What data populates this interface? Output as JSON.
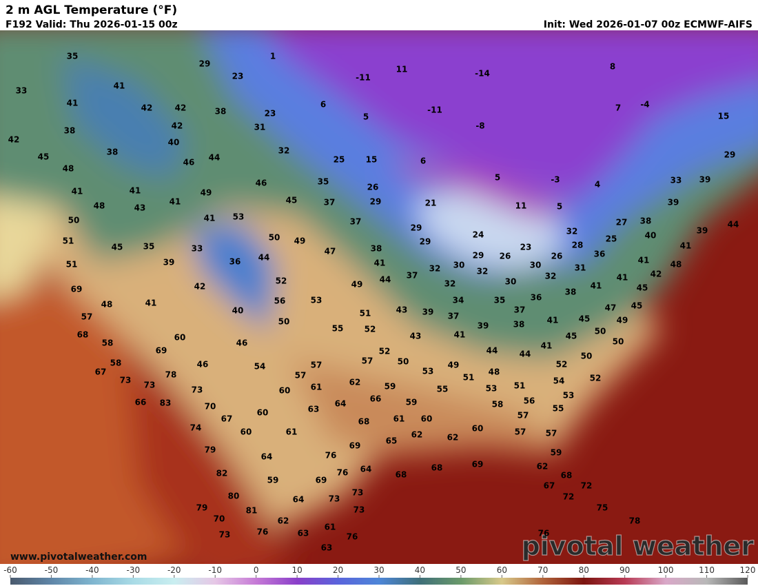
{
  "header": {
    "title": "2 m AGL Temperature (°F)",
    "valid": "F192 Valid: Thu 2026-01-15 00z",
    "init": "Init: Wed 2026-01-07 00z ECMWF-AIFS"
  },
  "map": {
    "temperature_labels": [
      35,
      29,
      1,
      11,
      -11,
      -14,
      8,
      33,
      41,
      23,
      6,
      -11,
      7,
      -4,
      41,
      42,
      42,
      38,
      23,
      5,
      15,
      38,
      42,
      31,
      -8,
      42,
      40,
      38,
      32,
      15,
      25,
      6,
      29,
      45,
      46,
      44,
      48,
      5,
      -3,
      4,
      33,
      39,
      35,
      26,
      46,
      41,
      41,
      49,
      45,
      37,
      29,
      21,
      11,
      5,
      39,
      48,
      43,
      41,
      53,
      41,
      50,
      37,
      29,
      27,
      38,
      44,
      39,
      32,
      51,
      45,
      35,
      33,
      50,
      49,
      24,
      40,
      29,
      47,
      38,
      23,
      28,
      25,
      36,
      41,
      44,
      36,
      29,
      26,
      26,
      51,
      39,
      41,
      30,
      30,
      31,
      32,
      32,
      41,
      48,
      37,
      44,
      52,
      49,
      32,
      30,
      32,
      42,
      41,
      41,
      45,
      69,
      42,
      38,
      56,
      53,
      41,
      48,
      34,
      35,
      36,
      45,
      47,
      40,
      43,
      39,
      37,
      37,
      51,
      57,
      45,
      49,
      50,
      55,
      52,
      39,
      38,
      41,
      68,
      43,
      41,
      45,
      50,
      60,
      46,
      58,
      41,
      50,
      69,
      52,
      44,
      44,
      50,
      58,
      57,
      50,
      57,
      46,
      54,
      53,
      49,
      52,
      67,
      48,
      78,
      73,
      73,
      57,
      62,
      51,
      51,
      54,
      52,
      59,
      61,
      60,
      73,
      53,
      55,
      53,
      66,
      83,
      64,
      66,
      59,
      58,
      56,
      70,
      63,
      60,
      67,
      61,
      60,
      57,
      55,
      68,
      74,
      60,
      61,
      60,
      57,
      57,
      65,
      62,
      62,
      79,
      64,
      76,
      69,
      59,
      82,
      76,
      64,
      68,
      68,
      69,
      62,
      59,
      69,
      68,
      80,
      64,
      73,
      73,
      67,
      72,
      72,
      79,
      81,
      73,
      75,
      70,
      62,
      61,
      78,
      76,
      63,
      76,
      73,
      76,
      63
    ]
  },
  "colorbar": {
    "ticks": [
      -60,
      -50,
      -40,
      -30,
      -20,
      -10,
      0,
      10,
      20,
      30,
      40,
      50,
      60,
      70,
      80,
      90,
      100,
      110,
      120
    ]
  },
  "footer": {
    "website": "www.pivotalweather.com",
    "logo": "pivotal weather"
  }
}
